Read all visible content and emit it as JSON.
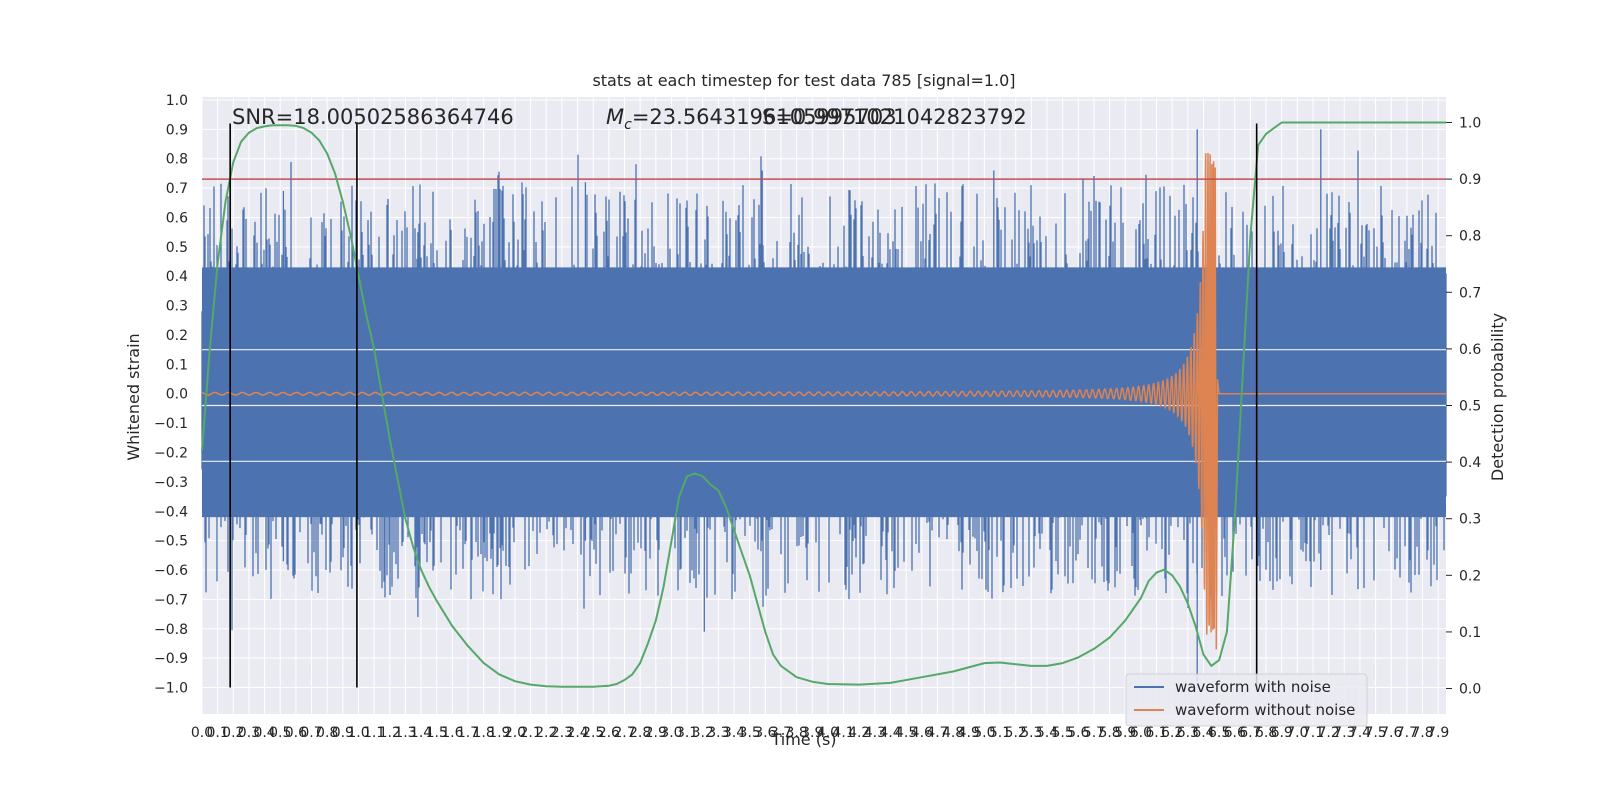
{
  "chart_data": {
    "type": "line",
    "title": "stats at each timestep for test data 785 [signal=1.0]",
    "xlabel": "Time (s)",
    "ylabel": "Whitened strain",
    "y2label": "Detection probability",
    "xlim": [
      0.0,
      7.95
    ],
    "ylim": [
      -1.09,
      1.01
    ],
    "y2lim": [
      -0.045,
      1.045
    ],
    "xticks": [
      "0.0",
      "0.1",
      "0.2",
      "0.3",
      "0.4",
      "0.5",
      "0.6",
      "0.7",
      "0.8",
      "0.9",
      "1.0",
      "1.1",
      "1.2",
      "1.3",
      "1.4",
      "1.5",
      "1.6",
      "1.7",
      "1.8",
      "1.9",
      "2.0",
      "2.1",
      "2.2",
      "2.3",
      "2.4",
      "2.5",
      "2.6",
      "2.7",
      "2.8",
      "2.9",
      "3.0",
      "3.1",
      "3.2",
      "3.3",
      "3.4",
      "3.5",
      "3.6",
      "3.7",
      "3.8",
      "3.9",
      "4.0",
      "4.1",
      "4.2",
      "4.3",
      "4.4",
      "4.5",
      "4.6",
      "4.7",
      "4.8",
      "4.9",
      "5.0",
      "5.1",
      "5.2",
      "5.3",
      "5.4",
      "5.5",
      "5.6",
      "5.7",
      "5.8",
      "5.9",
      "6.0",
      "6.1",
      "6.2",
      "6.3",
      "6.4",
      "6.5",
      "6.6",
      "6.7",
      "6.8",
      "6.9",
      "7.0",
      "7.1",
      "7.2",
      "7.3",
      "7.4",
      "7.5",
      "7.6",
      "7.7",
      "7.8",
      "7.9"
    ],
    "yticks": [
      "1.0",
      "0.9",
      "0.8",
      "0.7",
      "0.6",
      "0.5",
      "0.4",
      "0.3",
      "0.2",
      "0.1",
      "0.0",
      "−0.1",
      "−0.2",
      "−0.3",
      "−0.4",
      "−0.5",
      "−0.6",
      "−0.7",
      "−0.8",
      "−0.9",
      "−1.0"
    ],
    "y2ticks": [
      "1.0",
      "0.9",
      "0.8",
      "0.7",
      "0.6",
      "0.5",
      "0.4",
      "0.3",
      "0.2",
      "0.1",
      "0.0"
    ],
    "annotations": {
      "snr": "SNR=18.00502586364746",
      "mc": "=23.5643196105995703",
      "mc_symbol": "M",
      "mc_sub": "c",
      "overlap": "S=0.9971021042823792"
    },
    "threshold": {
      "axis": "y2",
      "value": 0.9,
      "color": "#c44e52"
    },
    "vlines": [
      0.18,
      0.99,
      6.74
    ],
    "vline_range": [
      -1.0,
      0.92
    ],
    "legend": {
      "position": "lower-right",
      "entries": [
        {
          "label": "waveform with noise",
          "color": "#4c72b0"
        },
        {
          "label": "waveform without noise",
          "color": "#dd8452"
        }
      ]
    },
    "series": [
      {
        "name": "waveform with noise",
        "color": "#4c72b0",
        "kind": "noise",
        "t_range": [
          0.0,
          7.95
        ],
        "band": [
          -0.42,
          0.43
        ],
        "spike_peaks": [
          {
            "t": 6.36,
            "min": -0.98,
            "max": 0.9
          },
          {
            "t": 7.15,
            "min": -0.6,
            "max": 0.9
          },
          {
            "t": 5.06,
            "min": -0.35,
            "max": 0.76
          },
          {
            "t": 3.58,
            "min": -0.5,
            "max": 0.76
          },
          {
            "t": 3.21,
            "min": -0.81,
            "max": 0.3
          },
          {
            "t": 1.38,
            "min": -0.76,
            "max": 0.55
          },
          {
            "t": 0.52,
            "min": -0.57,
            "max": 0.69
          },
          {
            "t": 2.45,
            "min": -0.5,
            "max": 0.72
          }
        ]
      },
      {
        "name": "waveform without noise",
        "color": "#dd8452",
        "kind": "chirp",
        "t_end": 6.47,
        "merger_peak": 0.77,
        "merger_min": -0.87
      },
      {
        "name": "detection probability",
        "color": "#55a868",
        "axis": "y2",
        "t": [
          0.0,
          0.05,
          0.1,
          0.15,
          0.2,
          0.25,
          0.3,
          0.35,
          0.4,
          0.45,
          0.5,
          0.55,
          0.6,
          0.65,
          0.7,
          0.75,
          0.8,
          0.85,
          0.9,
          0.95,
          1.0,
          1.05,
          1.1,
          1.15,
          1.2,
          1.25,
          1.3,
          1.35,
          1.4,
          1.45,
          1.5,
          1.6,
          1.7,
          1.8,
          1.9,
          2.0,
          2.1,
          2.2,
          2.3,
          2.4,
          2.5,
          2.6,
          2.65,
          2.7,
          2.75,
          2.8,
          2.85,
          2.9,
          2.95,
          3.0,
          3.05,
          3.1,
          3.15,
          3.2,
          3.25,
          3.3,
          3.35,
          3.4,
          3.45,
          3.5,
          3.55,
          3.6,
          3.65,
          3.7,
          3.8,
          3.9,
          4.0,
          4.2,
          4.4,
          4.6,
          4.8,
          5.0,
          5.1,
          5.2,
          5.3,
          5.4,
          5.5,
          5.6,
          5.7,
          5.8,
          5.9,
          6.0,
          6.05,
          6.1,
          6.15,
          6.2,
          6.25,
          6.3,
          6.35,
          6.4,
          6.45,
          6.5,
          6.55,
          6.6,
          6.65,
          6.7,
          6.75,
          6.8,
          6.85,
          6.9,
          6.95,
          7.0,
          7.5,
          7.95
        ],
        "p": [
          0.42,
          0.6,
          0.75,
          0.86,
          0.93,
          0.966,
          0.982,
          0.99,
          0.993,
          0.995,
          0.995,
          0.995,
          0.994,
          0.99,
          0.982,
          0.968,
          0.945,
          0.91,
          0.86,
          0.8,
          0.73,
          0.66,
          0.6,
          0.52,
          0.44,
          0.37,
          0.3,
          0.25,
          0.21,
          0.18,
          0.155,
          0.11,
          0.075,
          0.045,
          0.025,
          0.013,
          0.007,
          0.004,
          0.003,
          0.003,
          0.003,
          0.005,
          0.008,
          0.015,
          0.025,
          0.045,
          0.08,
          0.12,
          0.18,
          0.26,
          0.34,
          0.375,
          0.38,
          0.375,
          0.36,
          0.35,
          0.32,
          0.28,
          0.24,
          0.2,
          0.15,
          0.1,
          0.06,
          0.04,
          0.02,
          0.012,
          0.008,
          0.007,
          0.01,
          0.02,
          0.03,
          0.045,
          0.046,
          0.043,
          0.04,
          0.04,
          0.045,
          0.055,
          0.07,
          0.09,
          0.12,
          0.16,
          0.19,
          0.205,
          0.21,
          0.2,
          0.18,
          0.15,
          0.11,
          0.06,
          0.04,
          0.05,
          0.1,
          0.3,
          0.55,
          0.8,
          0.96,
          0.98,
          0.99,
          1.0,
          1.0,
          1.0,
          1.0,
          1.0
        ]
      }
    ]
  }
}
